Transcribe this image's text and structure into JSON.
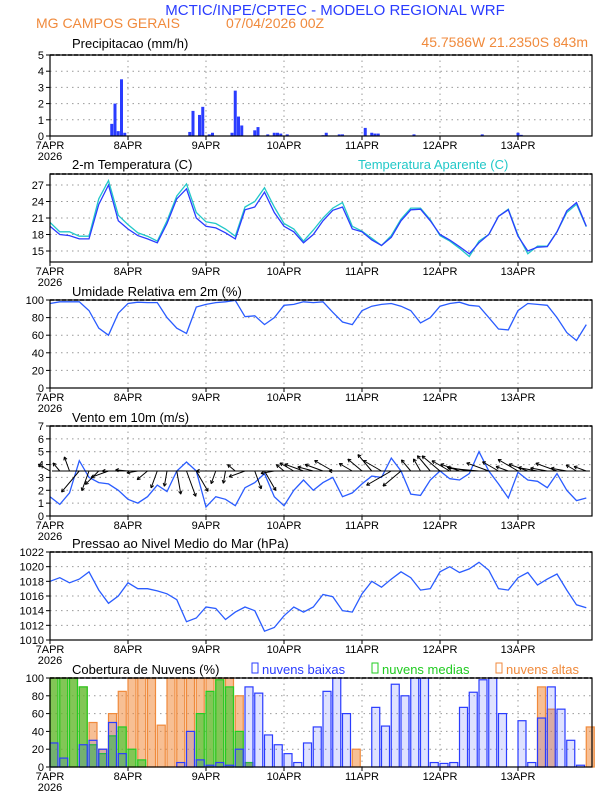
{
  "header": {
    "title": "MCTIC/INPE/CPTEC - MODELO REGIONAL WRF",
    "location": "MG CAMPOS GERAIS",
    "run": "07/04/2026 00Z",
    "coords": "45.7586W 21.2350S 843m"
  },
  "colors": {
    "title": "#2a3cff",
    "subtitle": "#f08a3c",
    "temp": "#2a3cff",
    "apparent": "#22c8c8",
    "rh": "#2a5cff",
    "wind": "#2a5cff",
    "arrows": "#000000",
    "pressure": "#2a5cff",
    "precip": "#2a3cff",
    "low": "#2a3cff",
    "mid": "#22cc22",
    "high": "#f08a3c"
  },
  "x_axis": {
    "tick_labels": [
      "7APR",
      "8APR",
      "9APR",
      "10APR",
      "11APR",
      "12APR",
      "13APR"
    ],
    "year_label": "2026",
    "start": "2026-04-07 00Z"
  },
  "chart_data": [
    {
      "id": "precip",
      "type": "bar",
      "title": "Precipitacao (mm/h)",
      "ylim": [
        0,
        5
      ],
      "yticks": [
        "0",
        "1",
        "2",
        "3",
        "4",
        "5"
      ],
      "grid": true,
      "events": [
        [
          "2026-04-07 19Z",
          0.75
        ],
        [
          "2026-04-07 20Z",
          2.0
        ],
        [
          "2026-04-07 21Z",
          0.3
        ],
        [
          "2026-04-07 22Z",
          3.5
        ],
        [
          "2026-04-07 23Z",
          0.2
        ],
        [
          "2026-04-08 19Z",
          0.25
        ],
        [
          "2026-04-08 20Z",
          1.55
        ],
        [
          "2026-04-08 22Z",
          1.3
        ],
        [
          "2026-04-08 23Z",
          1.8
        ],
        [
          "2026-04-09 01Z",
          0.1
        ],
        [
          "2026-04-09 02Z",
          0.2
        ],
        [
          "2026-04-09 08Z",
          0.2
        ],
        [
          "2026-04-09 09Z",
          2.8
        ],
        [
          "2026-04-09 10Z",
          1.2
        ],
        [
          "2026-04-09 11Z",
          0.65
        ],
        [
          "2026-04-09 15Z",
          0.35
        ],
        [
          "2026-04-09 16Z",
          0.55
        ],
        [
          "2026-04-09 19Z",
          0.1
        ],
        [
          "2026-04-09 21Z",
          0.2
        ],
        [
          "2026-04-09 22Z",
          0.2
        ],
        [
          "2026-04-09 23Z",
          0.15
        ],
        [
          "2026-04-10 01Z",
          0.1
        ],
        [
          "2026-04-10 12Z",
          0.05
        ],
        [
          "2026-04-10 13Z",
          0.2
        ],
        [
          "2026-04-10 17Z",
          0.1
        ],
        [
          "2026-04-10 18Z",
          0.1
        ],
        [
          "2026-04-11 01Z",
          0.5
        ],
        [
          "2026-04-11 03Z",
          0.2
        ],
        [
          "2026-04-11 04Z",
          0.15
        ],
        [
          "2026-04-11 05Z",
          0.15
        ],
        [
          "2026-04-11 16Z",
          0.1
        ],
        [
          "2026-04-12 13Z",
          0.1
        ],
        [
          "2026-04-13 00Z",
          0.2
        ],
        [
          "2026-04-13 01Z",
          0.07
        ]
      ]
    },
    {
      "id": "temp",
      "type": "line",
      "title": "2-m Temperatura (C)",
      "legend": "Temperatura Aparente (C)",
      "ylim": [
        13,
        29
      ],
      "yticks": [
        "15",
        "18",
        "21",
        "24",
        "27"
      ],
      "grid": true,
      "x_interval_hours": 3,
      "series": [
        {
          "values": [
            19.5,
            18,
            17.8,
            17.2,
            17.2,
            23.5,
            27,
            20.5,
            19,
            17.8,
            17.2,
            16.5,
            20,
            24.5,
            26.3,
            21,
            19.5,
            19.2,
            18.3,
            17.2,
            22.5,
            23,
            25.7,
            22,
            19.5,
            18.5,
            16.5,
            18,
            20.5,
            22.4,
            23,
            19,
            18.5,
            17,
            16,
            17.5,
            20.5,
            22.5,
            22.6,
            20.5,
            18,
            17,
            15.8,
            14.5,
            16.5,
            18,
            21.3,
            22.5,
            17.7,
            15,
            15.7,
            15.8,
            18.5,
            22.3,
            23.8,
            19.5
          ]
        },
        {
          "name": "Temperatura Aparente (C)",
          "values": [
            20.2,
            18.5,
            18.5,
            17.7,
            17.7,
            24.5,
            27.8,
            21.5,
            19.8,
            18.3,
            17.7,
            16.8,
            20.5,
            25,
            27.2,
            22,
            20.3,
            20,
            19,
            17.7,
            23,
            24,
            26.5,
            23,
            20,
            19,
            16.8,
            18.8,
            21,
            22.8,
            23.8,
            19.5,
            18.6,
            17.3,
            16,
            17.8,
            20.8,
            22.8,
            22.8,
            20.7,
            17.8,
            16.8,
            15.5,
            14,
            16.8,
            18,
            21.3,
            22.6,
            17.9,
            14.5,
            15.9,
            15.9,
            18.5,
            22,
            23.5,
            19.4
          ]
        }
      ]
    },
    {
      "id": "rh",
      "type": "line",
      "title": "Umidade Relativa em 2m (%)",
      "ylim": [
        0,
        100
      ],
      "yticks": [
        "0",
        "20",
        "40",
        "60",
        "80",
        "100"
      ],
      "grid": true,
      "x_interval_hours": 3,
      "values": [
        96,
        98,
        98,
        98,
        88,
        68,
        60,
        85,
        96,
        97.5,
        97,
        97,
        80,
        68,
        62,
        92,
        95,
        97,
        98,
        99.5,
        81,
        82,
        72,
        80,
        94,
        95,
        98,
        97,
        98,
        86,
        75,
        72,
        88,
        93,
        95,
        96,
        93,
        88,
        74,
        80,
        93,
        96,
        97.5,
        94,
        93,
        80,
        67,
        66,
        88,
        96,
        95,
        94,
        80,
        63,
        54,
        72
      ]
    },
    {
      "id": "wind",
      "type": "line",
      "title": "Vento em 10m (m/s)",
      "ylim": [
        0,
        7
      ],
      "yticks": [
        "0",
        "1",
        "2",
        "3",
        "4",
        "5",
        "6",
        "7"
      ],
      "grid": true,
      "x_interval_hours": 3,
      "speed": [
        1.5,
        0.9,
        1.8,
        4.3,
        3.0,
        2.6,
        2.5,
        2.0,
        1.3,
        1.0,
        1.5,
        2.4,
        1.9,
        3.5,
        4.2,
        3.5,
        0.7,
        1.5,
        1.3,
        0.8,
        2.2,
        2.6,
        3.3,
        1.5,
        0.8,
        2.0,
        2.8,
        2.0,
        2.6,
        3.0,
        1.5,
        1.8,
        2.5,
        3.1,
        3.0,
        4.5,
        3.5,
        1.7,
        1.6,
        2.8,
        3.5,
        2.9,
        2.8,
        3.3,
        5.0,
        3.5,
        2.5,
        1.4,
        3.4,
        2.8,
        2.7,
        2.2,
        3.3,
        2.0,
        1.2,
        1.4
      ],
      "arrow_direction_deg": [
        300,
        320,
        340,
        220,
        200,
        225,
        250,
        270,
        275,
        260,
        230,
        200,
        190,
        170,
        160,
        150,
        270,
        200,
        190,
        310,
        250,
        160,
        150,
        260,
        310,
        300,
        290,
        285,
        290,
        300,
        270,
        300,
        310,
        320,
        300,
        240,
        230,
        320,
        330,
        320,
        310,
        300,
        290,
        280,
        275,
        290,
        300,
        290,
        300,
        290,
        280,
        280,
        290,
        280,
        300,
        290
      ]
    },
    {
      "id": "pressure",
      "type": "line",
      "title": "Pressao ao Nivel Medio do Mar (hPa)",
      "ylim": [
        1010,
        1022
      ],
      "yticks": [
        "1010",
        "1012",
        "1014",
        "1016",
        "1018",
        "1020",
        "1022"
      ],
      "grid": true,
      "x_interval_hours": 3,
      "values": [
        1018,
        1018.5,
        1017.8,
        1018.3,
        1019.3,
        1016.8,
        1015,
        1016,
        1017.8,
        1017,
        1017,
        1016.7,
        1016.3,
        1015.5,
        1012.5,
        1013,
        1014.5,
        1014.3,
        1012.8,
        1013.8,
        1014.5,
        1014,
        1011.2,
        1011.7,
        1013.3,
        1014.5,
        1013.8,
        1014.5,
        1016.2,
        1015.9,
        1014,
        1013.8,
        1016.3,
        1018,
        1017.2,
        1018.3,
        1019.3,
        1018.5,
        1016.8,
        1017,
        1019.3,
        1020,
        1019.2,
        1019.7,
        1020.6,
        1019.5,
        1017,
        1016.8,
        1018.5,
        1019.2,
        1017.5,
        1018.3,
        1019,
        1016.8,
        1014.8,
        1014.4
      ]
    },
    {
      "id": "clouds",
      "type": "bar",
      "title": "Cobertura de Nuvens (%)",
      "ylim": [
        0,
        100
      ],
      "yticks": [
        "0",
        "20",
        "40",
        "60",
        "80",
        "100"
      ],
      "grid": true,
      "x_interval_hours": 3,
      "series": [
        {
          "name": "nuvens altas",
          "values": [
            100,
            100,
            100,
            90,
            50,
            20,
            60,
            85,
            100,
            100,
            100,
            47,
            100,
            100,
            100,
            100,
            100,
            100,
            100,
            80,
            5,
            0,
            0,
            0,
            0,
            0,
            0,
            0,
            0,
            0,
            0,
            20,
            0,
            0,
            0,
            0,
            0,
            0,
            0,
            0,
            0,
            0,
            0,
            0,
            0,
            0,
            0,
            0,
            0,
            0,
            90,
            65,
            0,
            0,
            0,
            45
          ]
        },
        {
          "name": "nuvens medias",
          "values": [
            100,
            100,
            100,
            90,
            25,
            15,
            35,
            45,
            20,
            8,
            0,
            0,
            0,
            0,
            0,
            60,
            85,
            98,
            90,
            40,
            5,
            0,
            0,
            0,
            0,
            0,
            0,
            0,
            0,
            0,
            0,
            0,
            0,
            0,
            0,
            0,
            0,
            0,
            0,
            0,
            0,
            0,
            0,
            0,
            0,
            0,
            0,
            0,
            0,
            0,
            0,
            0,
            0,
            0,
            0,
            0
          ]
        },
        {
          "name": "nuvens baixas",
          "values": [
            27,
            10,
            0,
            25,
            30,
            20,
            50,
            15,
            0,
            0,
            0,
            0,
            0,
            5,
            40,
            8,
            2,
            5,
            2,
            20,
            90,
            83,
            36,
            25,
            15,
            5,
            27,
            45,
            85,
            100,
            60,
            0,
            0,
            67,
            46,
            93,
            80,
            100,
            100,
            5,
            4,
            5,
            67,
            84,
            98,
            100,
            60,
            0,
            52,
            5,
            55,
            90,
            65,
            30,
            2,
            0
          ]
        }
      ]
    }
  ]
}
